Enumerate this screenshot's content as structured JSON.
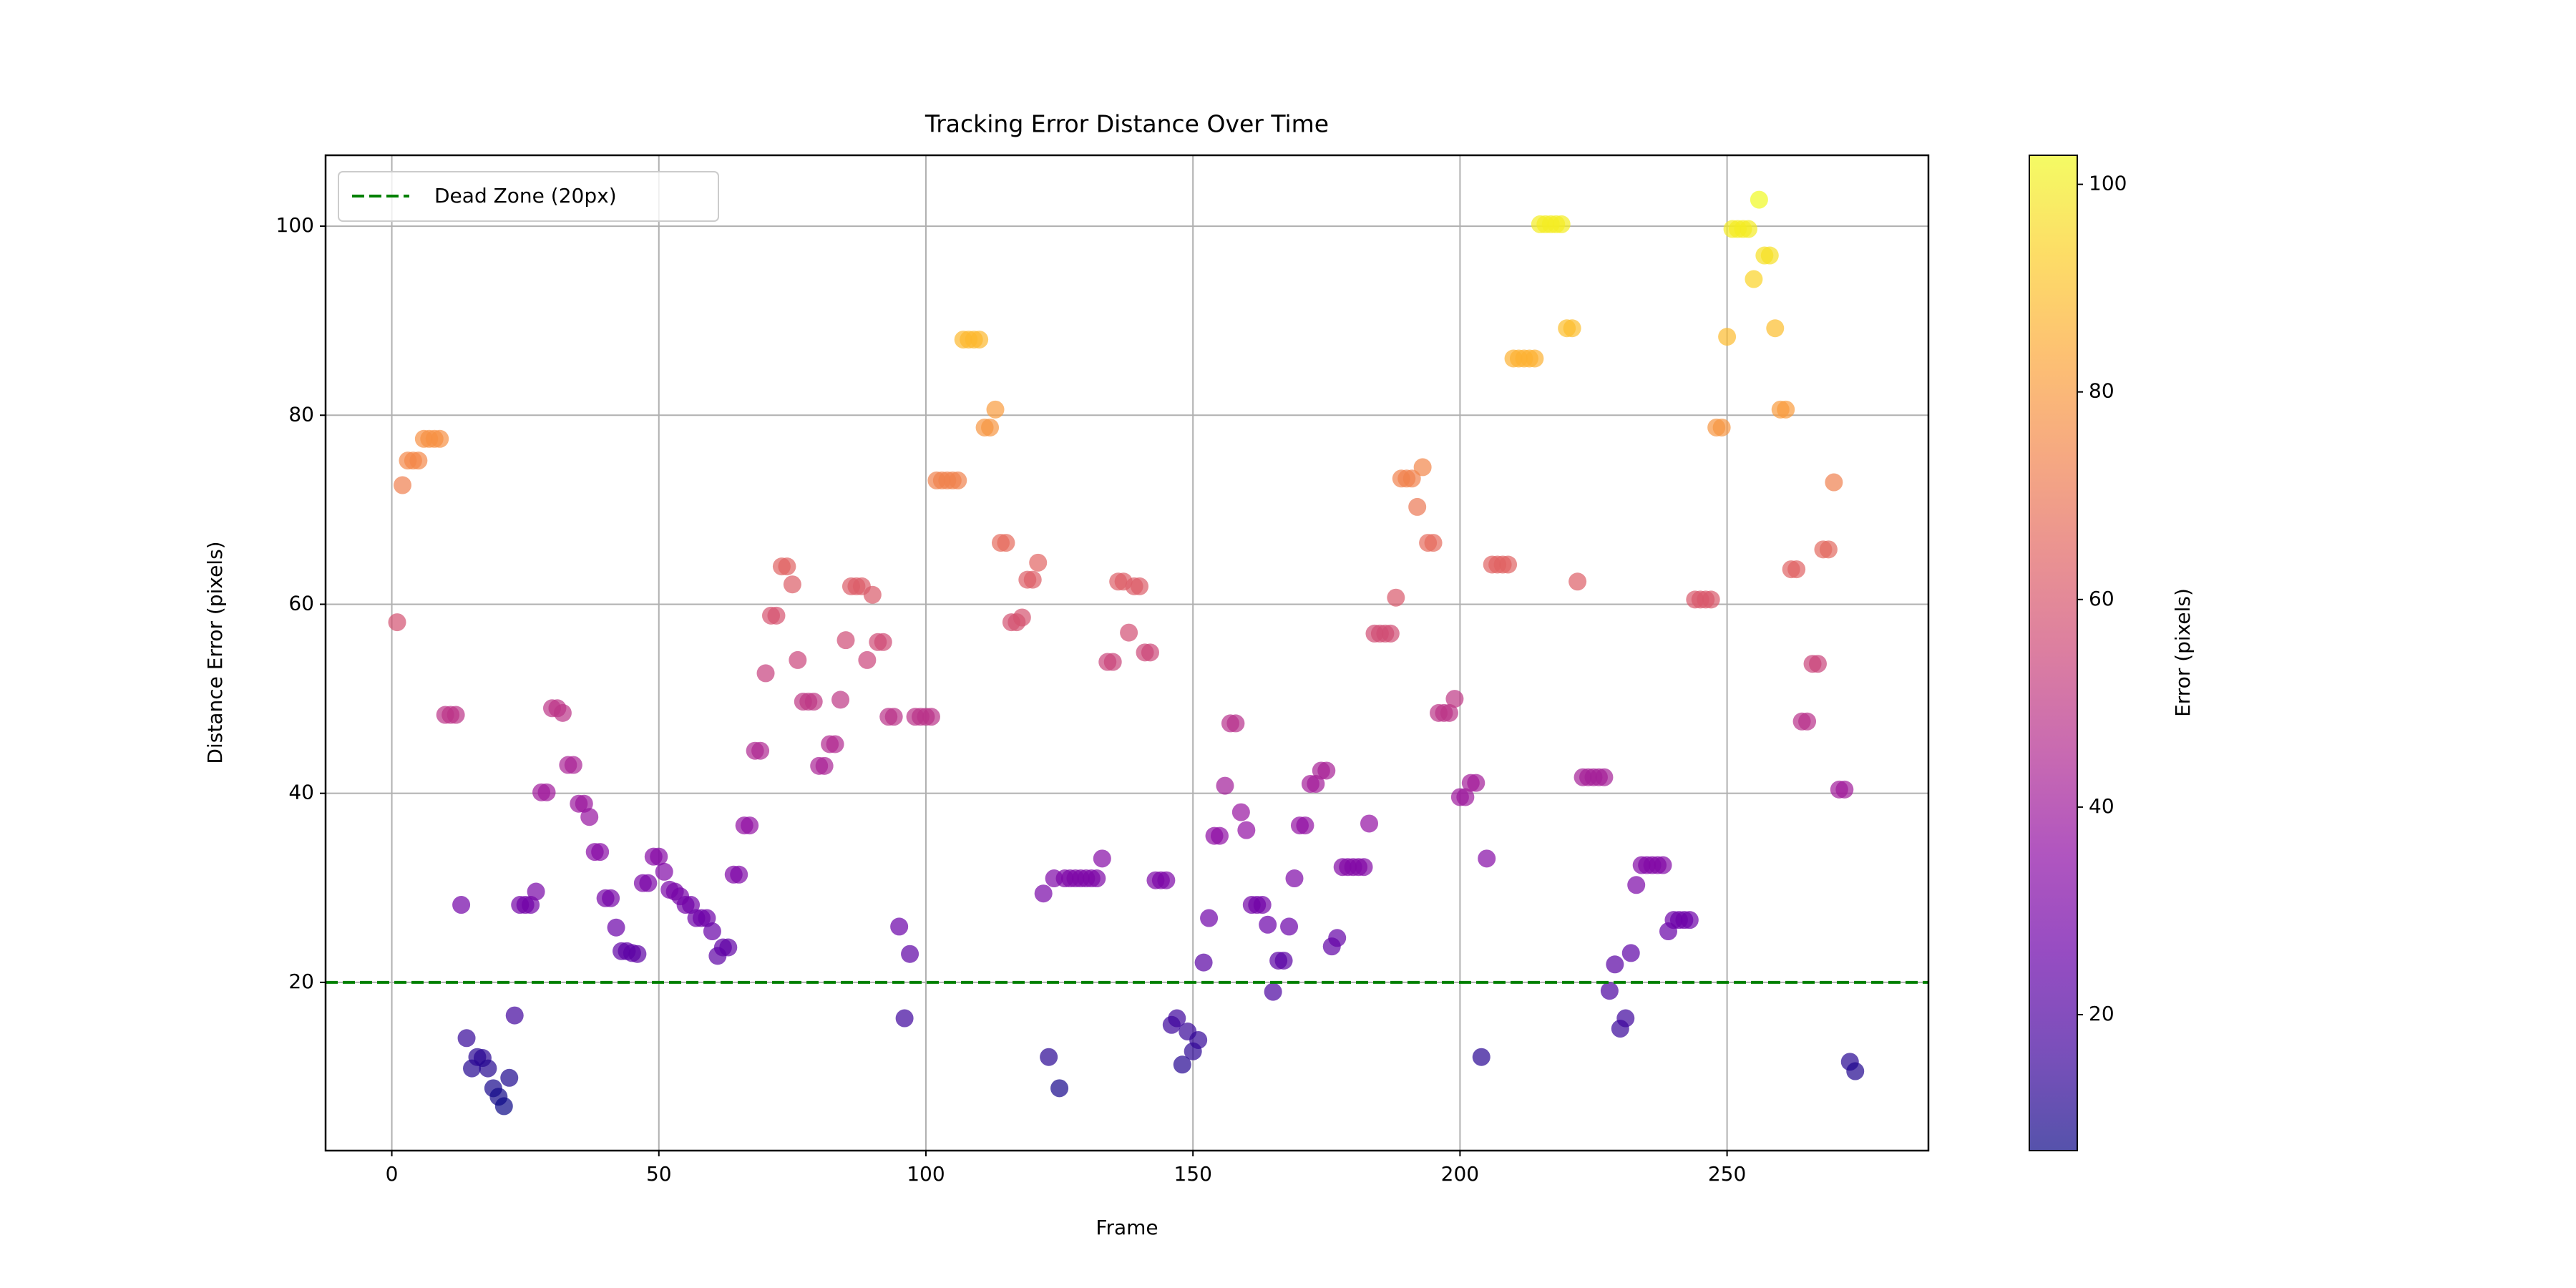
{
  "chart_data": {
    "type": "scatter",
    "title": "Tracking Error Distance Over Time",
    "x_label": "Frame",
    "y_label": "Distance Error (pixels)",
    "x": [
      1,
      2,
      3,
      4,
      5,
      6,
      7,
      8,
      9,
      10,
      11,
      12,
      13,
      14,
      15,
      16,
      17,
      18,
      19,
      20,
      21,
      22,
      23,
      24,
      25,
      26,
      27,
      28,
      29,
      30,
      31,
      32,
      33,
      34,
      35,
      36,
      37,
      38,
      39,
      40,
      41,
      42,
      43,
      44,
      45,
      46,
      47,
      48,
      49,
      50,
      51,
      52,
      53,
      54,
      55,
      56,
      57,
      58,
      59,
      60,
      61,
      62,
      63,
      64,
      65,
      66,
      67,
      68,
      69,
      70,
      71,
      72,
      73,
      74,
      75,
      76,
      77,
      78,
      79,
      80,
      81,
      82,
      83,
      84,
      85,
      86,
      87,
      88,
      89,
      90,
      91,
      92,
      93,
      94,
      95,
      96,
      97,
      98,
      99,
      100,
      101,
      102,
      103,
      104,
      105,
      106,
      107,
      108,
      109,
      110,
      111,
      112,
      113,
      114,
      115,
      116,
      117,
      118,
      119,
      120,
      121,
      122,
      123,
      124,
      125,
      126,
      127,
      128,
      129,
      130,
      131,
      132,
      133,
      134,
      135,
      136,
      137,
      138,
      139,
      140,
      141,
      142,
      143,
      144,
      145,
      146,
      147,
      148,
      149,
      150,
      151,
      152,
      153,
      154,
      155,
      156,
      157,
      158,
      159,
      160,
      161,
      162,
      163,
      164,
      165,
      166,
      167,
      168,
      169,
      170,
      171,
      172,
      173,
      174,
      175,
      176,
      177,
      178,
      179,
      180,
      181,
      182,
      183,
      184,
      185,
      186,
      187,
      188,
      189,
      190,
      191,
      192,
      193,
      194,
      195,
      196,
      197,
      198,
      199,
      200,
      201,
      202,
      203,
      204,
      205,
      206,
      207,
      208,
      209,
      210,
      211,
      212,
      213,
      214,
      215,
      216,
      217,
      218,
      219,
      220,
      221,
      222,
      223,
      224,
      225,
      226,
      227,
      228,
      229,
      230,
      231,
      232,
      233,
      234,
      235,
      236,
      237,
      238,
      239,
      240,
      241,
      242,
      243,
      244,
      245,
      246,
      247,
      248,
      249,
      250,
      251,
      252,
      253,
      254,
      255,
      256,
      257,
      258,
      259,
      260,
      261,
      262,
      263,
      264,
      265,
      266,
      267,
      268,
      269,
      270,
      271,
      272,
      273,
      274
    ],
    "values": [
      58.1,
      72.6,
      75.2,
      75.2,
      75.2,
      77.5,
      77.5,
      77.5,
      77.5,
      48.3,
      48.3,
      48.3,
      28.2,
      14.1,
      10.9,
      12.1,
      12.0,
      10.9,
      8.8,
      7.9,
      6.9,
      9.9,
      16.5,
      28.2,
      28.2,
      28.2,
      29.6,
      40.1,
      40.1,
      49.0,
      49.0,
      48.5,
      43.0,
      43.0,
      38.9,
      38.9,
      37.5,
      33.8,
      33.8,
      28.9,
      28.9,
      25.8,
      23.3,
      23.3,
      23.1,
      23.0,
      30.5,
      30.5,
      33.3,
      33.3,
      31.7,
      29.8,
      29.6,
      29.1,
      28.2,
      28.2,
      26.8,
      26.8,
      26.8,
      25.4,
      22.8,
      23.7,
      23.7,
      31.4,
      31.4,
      36.6,
      36.6,
      44.5,
      44.5,
      52.7,
      58.8,
      58.8,
      64.0,
      64.0,
      62.1,
      54.1,
      49.7,
      49.7,
      49.7,
      42.9,
      42.9,
      45.2,
      45.2,
      49.9,
      56.2,
      61.9,
      61.9,
      61.9,
      54.1,
      61.0,
      56.0,
      56.0,
      48.1,
      48.1,
      25.9,
      16.2,
      23.0,
      48.1,
      48.1,
      48.1,
      48.1,
      73.1,
      73.1,
      73.1,
      73.1,
      73.1,
      88.0,
      88.0,
      88.0,
      88.0,
      78.7,
      78.7,
      80.6,
      66.5,
      66.5,
      58.1,
      58.1,
      58.6,
      62.6,
      62.6,
      64.4,
      29.4,
      12.1,
      31.0,
      8.8,
      31.0,
      31.0,
      31.0,
      31.0,
      31.0,
      31.0,
      31.0,
      33.1,
      53.9,
      53.9,
      62.4,
      62.4,
      57.0,
      61.9,
      61.9,
      54.9,
      54.9,
      30.8,
      30.8,
      30.8,
      15.5,
      16.2,
      11.3,
      14.8,
      12.7,
      13.9,
      22.1,
      26.8,
      35.5,
      35.5,
      40.8,
      47.4,
      47.4,
      38.0,
      36.1,
      28.2,
      28.2,
      28.2,
      26.1,
      19.0,
      22.3,
      22.3,
      25.9,
      31.0,
      36.6,
      36.6,
      41.0,
      41.0,
      42.4,
      42.4,
      23.8,
      24.7,
      32.2,
      32.2,
      32.2,
      32.2,
      32.2,
      36.8,
      56.9,
      56.9,
      56.9,
      56.9,
      60.7,
      73.3,
      73.3,
      73.3,
      70.3,
      74.5,
      66.5,
      66.5,
      48.5,
      48.5,
      48.5,
      50.0,
      39.6,
      39.6,
      41.1,
      41.1,
      12.1,
      33.1,
      64.2,
      64.2,
      64.2,
      64.2,
      86.0,
      86.0,
      86.0,
      86.0,
      86.0,
      100.2,
      100.2,
      100.2,
      100.2,
      100.2,
      89.2,
      89.2,
      62.4,
      41.7,
      41.7,
      41.7,
      41.7,
      41.7,
      19.1,
      21.9,
      15.1,
      16.2,
      23.1,
      30.3,
      32.4,
      32.4,
      32.4,
      32.4,
      32.4,
      25.4,
      26.6,
      26.6,
      26.6,
      26.6,
      60.5,
      60.5,
      60.5,
      60.5,
      78.7,
      78.7,
      88.3,
      99.7,
      99.7,
      99.7,
      99.7,
      94.4,
      102.8,
      96.9,
      96.9,
      89.2,
      80.6,
      80.6,
      63.7,
      63.7,
      47.6,
      47.6,
      53.7,
      53.7,
      65.8,
      65.8,
      72.9,
      40.4,
      40.4,
      11.6,
      10.6
    ],
    "xlim": [
      -12.4,
      287.7
    ],
    "ylim": [
      2.2,
      107.5
    ],
    "xticks": [
      0,
      50,
      100,
      150,
      200,
      250
    ],
    "yticks": [
      20,
      40,
      60,
      80,
      100
    ],
    "grid": true,
    "colormap": "plasma",
    "alpha": 0.7,
    "colorbar": {
      "label": "Error (pixels)",
      "clim": [
        6.9,
        102.8
      ],
      "ticks": [
        20,
        40,
        60,
        80,
        100
      ]
    },
    "hline": {
      "value": 20,
      "label": "Dead Zone (20px)",
      "color": "#008000",
      "style": "dashed"
    },
    "legend": "upper left"
  }
}
